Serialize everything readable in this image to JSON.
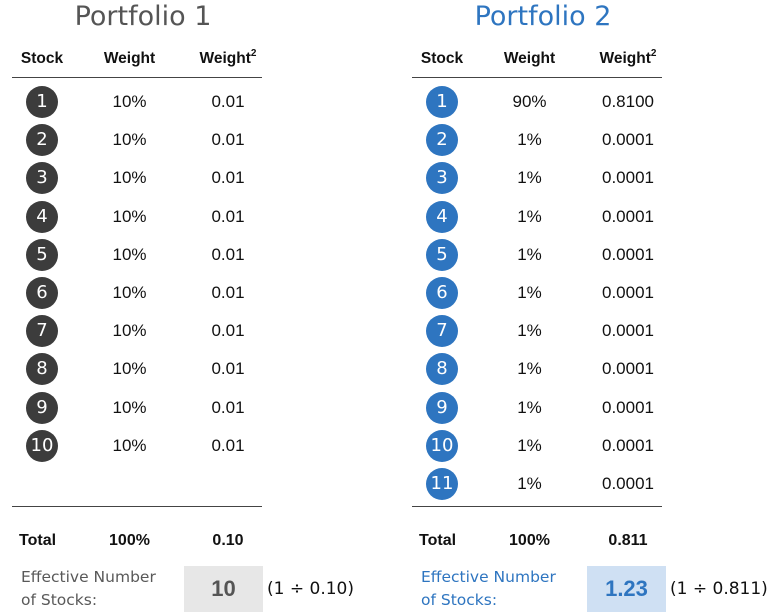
{
  "portfolios": [
    {
      "title": "Portfolio 1",
      "headers": {
        "stock": "Stock",
        "weight": "Weight",
        "weight_sq": "Weight",
        "sq_mark": "2"
      },
      "rows": [
        {
          "n": "1",
          "weight": "10%",
          "sq": "0.01"
        },
        {
          "n": "2",
          "weight": "10%",
          "sq": "0.01"
        },
        {
          "n": "3",
          "weight": "10%",
          "sq": "0.01"
        },
        {
          "n": "4",
          "weight": "10%",
          "sq": "0.01"
        },
        {
          "n": "5",
          "weight": "10%",
          "sq": "0.01"
        },
        {
          "n": "6",
          "weight": "10%",
          "sq": "0.01"
        },
        {
          "n": "7",
          "weight": "10%",
          "sq": "0.01"
        },
        {
          "n": "8",
          "weight": "10%",
          "sq": "0.01"
        },
        {
          "n": "9",
          "weight": "10%",
          "sq": "0.01"
        },
        {
          "n": "10",
          "weight": "10%",
          "sq": "0.01"
        }
      ],
      "total": {
        "label": "Total",
        "weight": "100%",
        "sq": "0.10"
      },
      "effective": {
        "label_line1": "Effective Number",
        "label_line2": "of Stocks:",
        "value": "10",
        "formula": "(1 ÷ 0.10)"
      }
    },
    {
      "title": "Portfolio 2",
      "headers": {
        "stock": "Stock",
        "weight": "Weight",
        "weight_sq": "Weight",
        "sq_mark": "2"
      },
      "rows": [
        {
          "n": "1",
          "weight": "90%",
          "sq": "0.8100"
        },
        {
          "n": "2",
          "weight": "1%",
          "sq": "0.0001"
        },
        {
          "n": "3",
          "weight": "1%",
          "sq": "0.0001"
        },
        {
          "n": "4",
          "weight": "1%",
          "sq": "0.0001"
        },
        {
          "n": "5",
          "weight": "1%",
          "sq": "0.0001"
        },
        {
          "n": "6",
          "weight": "1%",
          "sq": "0.0001"
        },
        {
          "n": "7",
          "weight": "1%",
          "sq": "0.0001"
        },
        {
          "n": "8",
          "weight": "1%",
          "sq": "0.0001"
        },
        {
          "n": "9",
          "weight": "1%",
          "sq": "0.0001"
        },
        {
          "n": "10",
          "weight": "1%",
          "sq": "0.0001"
        },
        {
          "n": "11",
          "weight": "1%",
          "sq": "0.0001"
        }
      ],
      "total": {
        "label": "Total",
        "weight": "100%",
        "sq": "0.811"
      },
      "effective": {
        "label_line1": "Effective Number",
        "label_line2": "of Stocks:",
        "value": "1.23",
        "formula": "(1 ÷ 0.811)"
      }
    }
  ]
}
